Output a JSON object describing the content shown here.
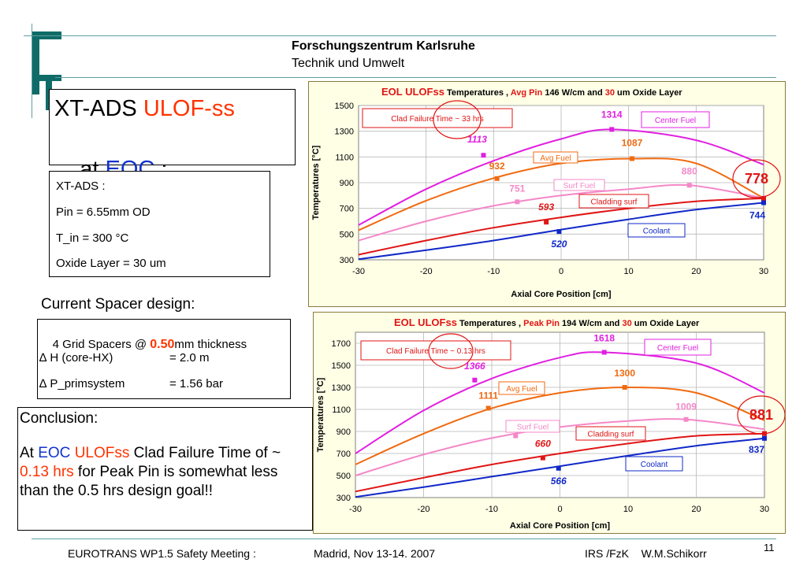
{
  "header": {
    "org": "Forschungszentrum Karlsruhe",
    "sub": "Technik und Umwelt"
  },
  "title": {
    "line1_a": "XT-ADS ",
    "line1_b": "ULOF-ss",
    "line2_a": "at ",
    "line2_b": "EOC",
    "line2_c": " :"
  },
  "params": {
    "l1": "XT-ADS :",
    "l2": "Pin = 6.55mm OD",
    "l3": "T_in = 300 °C",
    "l4": "Oxide Layer = 30 um"
  },
  "spacer": {
    "heading": "Current Spacer design:",
    "r1a": "4 Grid Spacers @ ",
    "r1b": "0.50",
    "r1c": "mm thickness",
    "r2a": "∆ H (core-HX)",
    "r2b": "= 2.0 m",
    "r3a": "∆ P_primsystem",
    "r3b": "= 1.56 bar"
  },
  "conclusion": {
    "heading": "Conclusion:",
    "p1": "At ",
    "p2": "EOC",
    "p3": " ",
    "p4": "ULOFss",
    "p5": " Clad Failure Time of ~ ",
    "p6": "0.13 hrs",
    "p7": " for Peak Pin is somewhat less than the 0.5 hrs design goal!!"
  },
  "footer": {
    "left": "EUROTRANS  WP1.5 Safety Meeting :",
    "mid": "Madrid, Nov 13-14.  2007",
    "right": "IRS /FzK    W.M.Schikorr",
    "page": "11"
  },
  "colors": {
    "center": "#e020e0",
    "avg": "#f06a10",
    "surf": "#f488c8",
    "clad": "#e01515",
    "cool": "#1028c8",
    "teal": "#0f6b68"
  },
  "chart_data": [
    {
      "type": "line",
      "title_parts": [
        "EOL ULOFss",
        " Temperatures , ",
        "Avg Pin",
        " 146 W/cm and ",
        "30",
        " um Oxide Layer"
      ],
      "xlabel": "Axial Core Position [cm]",
      "ylabel": "Temperatures [°C]",
      "xlim": [
        -30,
        30
      ],
      "ylim": [
        300,
        1500
      ],
      "xticks": [
        -30,
        -20,
        -10,
        0,
        10,
        20,
        30
      ],
      "yticks": [
        300,
        500,
        700,
        900,
        1100,
        1300,
        1500
      ],
      "grid": true,
      "series": [
        {
          "name": "Center Fuel",
          "key": "center",
          "x": [
            -30,
            -20,
            -10,
            0,
            7.5,
            20,
            30
          ],
          "y": [
            570,
            850,
            1070,
            1240,
            1314,
            1230,
            1040
          ],
          "marker": {
            "x": -11.5,
            "y": 1113
          },
          "peak": {
            "x": 7.5,
            "y": 1314
          }
        },
        {
          "name": "Avg Fuel",
          "key": "avg",
          "x": [
            -30,
            -20,
            -10,
            0,
            10.5,
            20,
            30
          ],
          "y": [
            530,
            760,
            935,
            1050,
            1087,
            1050,
            780
          ],
          "marker": {
            "x": -9.5,
            "y": 932
          },
          "peak": {
            "x": 10.5,
            "y": 1087
          }
        },
        {
          "name": "Surf Fuel",
          "key": "surf",
          "x": [
            -30,
            -20,
            -10,
            0,
            10,
            19,
            30
          ],
          "y": [
            450,
            600,
            720,
            800,
            850,
            880,
            780
          ],
          "marker": {
            "x": -6.5,
            "y": 751
          },
          "peak": {
            "x": 19,
            "y": 880
          }
        },
        {
          "name": "Cladding surf",
          "key": "clad",
          "x": [
            -30,
            -20,
            -10,
            0,
            10,
            20,
            30
          ],
          "y": [
            340,
            450,
            550,
            630,
            700,
            755,
            778
          ],
          "marker": {
            "x": -2.2,
            "y": 593
          },
          "peak": {
            "x": 30,
            "y": 778
          }
        },
        {
          "name": "Coolant",
          "key": "cool",
          "x": [
            -30,
            -20,
            -10,
            0,
            10,
            20,
            30
          ],
          "y": [
            305,
            375,
            450,
            535,
            615,
            690,
            744
          ],
          "marker": {
            "x": -0.3,
            "y": 520
          },
          "peak": {
            "x": 30,
            "y": 744
          }
        }
      ],
      "labels": [
        {
          "text": "1314",
          "key": "center",
          "x": 7.5,
          "y": 1314
        },
        {
          "text": "1113",
          "key": "center",
          "x": -11.5,
          "y": 1113
        },
        {
          "text": "1087",
          "key": "avg",
          "x": 10.5,
          "y": 1087
        },
        {
          "text": "932",
          "key": "avg",
          "x": -9.5,
          "y": 932
        },
        {
          "text": "880",
          "key": "surf",
          "x": 19,
          "y": 880
        },
        {
          "text": "751",
          "key": "surf",
          "x": -6.5,
          "y": 751
        },
        {
          "text": "593",
          "key": "clad",
          "x": -2.2,
          "y": 593
        },
        {
          "text": "778",
          "key": "clad",
          "x": 30,
          "y": 778
        },
        {
          "text": "744",
          "key": "cool",
          "x": 30,
          "y": 744
        },
        {
          "text": "520",
          "key": "cool",
          "x": -0.3,
          "y": 520
        }
      ],
      "clad_failure": "Clad Failure Time ~ 33 hrs",
      "legend": [
        "Center Fuel",
        "Avg Fuel",
        "Surf Fuel",
        "Cladding surf",
        "Coolant"
      ]
    },
    {
      "type": "line",
      "title_parts": [
        "EOL ULOFss",
        " Temperatures , ",
        "Peak Pin",
        " 194 W/cm and ",
        "30",
        " um Oxide Layer"
      ],
      "xlabel": "Axial Core Position [cm]",
      "ylabel": "Temperatures [°C]",
      "xlim": [
        -30,
        30
      ],
      "ylim": [
        300,
        1800
      ],
      "xticks": [
        -30,
        -20,
        -10,
        0,
        10,
        20,
        30
      ],
      "yticks": [
        300,
        500,
        700,
        900,
        1100,
        1300,
        1500,
        1700
      ],
      "grid": true,
      "series": [
        {
          "name": "Center Fuel",
          "key": "center",
          "x": [
            -30,
            -20,
            -10,
            0,
            6.5,
            20,
            30
          ],
          "y": [
            700,
            1090,
            1380,
            1570,
            1618,
            1520,
            1250
          ],
          "marker": {
            "x": -12.5,
            "y": 1366
          },
          "peak": {
            "x": 6.5,
            "y": 1618
          }
        },
        {
          "name": "Avg Fuel",
          "key": "avg",
          "x": [
            -30,
            -20,
            -10,
            0,
            9.5,
            20,
            30
          ],
          "y": [
            600,
            880,
            1110,
            1250,
            1300,
            1250,
            1000
          ],
          "marker": {
            "x": -10.5,
            "y": 1111
          },
          "peak": {
            "x": 9.5,
            "y": 1300
          }
        },
        {
          "name": "Surf Fuel",
          "key": "surf",
          "x": [
            -30,
            -20,
            -10,
            0,
            10,
            18.5,
            30
          ],
          "y": [
            500,
            690,
            840,
            940,
            995,
            1009,
            920
          ],
          "marker": {
            "x": -6.5,
            "y": 860
          },
          "peak": {
            "x": 18.5,
            "y": 1009
          }
        },
        {
          "name": "Cladding surf",
          "key": "clad",
          "x": [
            -30,
            -20,
            -10,
            0,
            10,
            20,
            30
          ],
          "y": [
            355,
            480,
            600,
            700,
            790,
            860,
            881
          ],
          "marker": {
            "x": -2.5,
            "y": 660
          },
          "peak": {
            "x": 30,
            "y": 881
          }
        },
        {
          "name": "Coolant",
          "key": "cool",
          "x": [
            -30,
            -20,
            -10,
            0,
            10,
            20,
            30
          ],
          "y": [
            305,
            395,
            490,
            585,
            680,
            770,
            837
          ],
          "marker": {
            "x": -0.2,
            "y": 566
          },
          "peak": {
            "x": 30,
            "y": 837
          }
        }
      ],
      "labels": [
        {
          "text": "1618",
          "key": "center",
          "x": 6.5,
          "y": 1618
        },
        {
          "text": "1366",
          "key": "center",
          "x": -12.5,
          "y": 1366
        },
        {
          "text": "1300",
          "key": "avg",
          "x": 9.5,
          "y": 1300
        },
        {
          "text": "1111",
          "key": "avg",
          "x": -10.5,
          "y": 1111
        },
        {
          "text": "1009",
          "key": "surf",
          "x": 18.5,
          "y": 1009
        },
        {
          "text": "660",
          "key": "clad",
          "x": -2.5,
          "y": 660
        },
        {
          "text": "881",
          "key": "clad",
          "x": 30,
          "y": 881
        },
        {
          "text": "837",
          "key": "cool",
          "x": 30,
          "y": 837
        },
        {
          "text": "566",
          "key": "cool",
          "x": -0.2,
          "y": 566
        }
      ],
      "clad_failure": "Clad Failure Time ~ 0.13 hrs",
      "legend": [
        "Center Fuel",
        "Avg Fuel",
        "Surf Fuel",
        "Cladding surf",
        "Coolant"
      ]
    }
  ]
}
